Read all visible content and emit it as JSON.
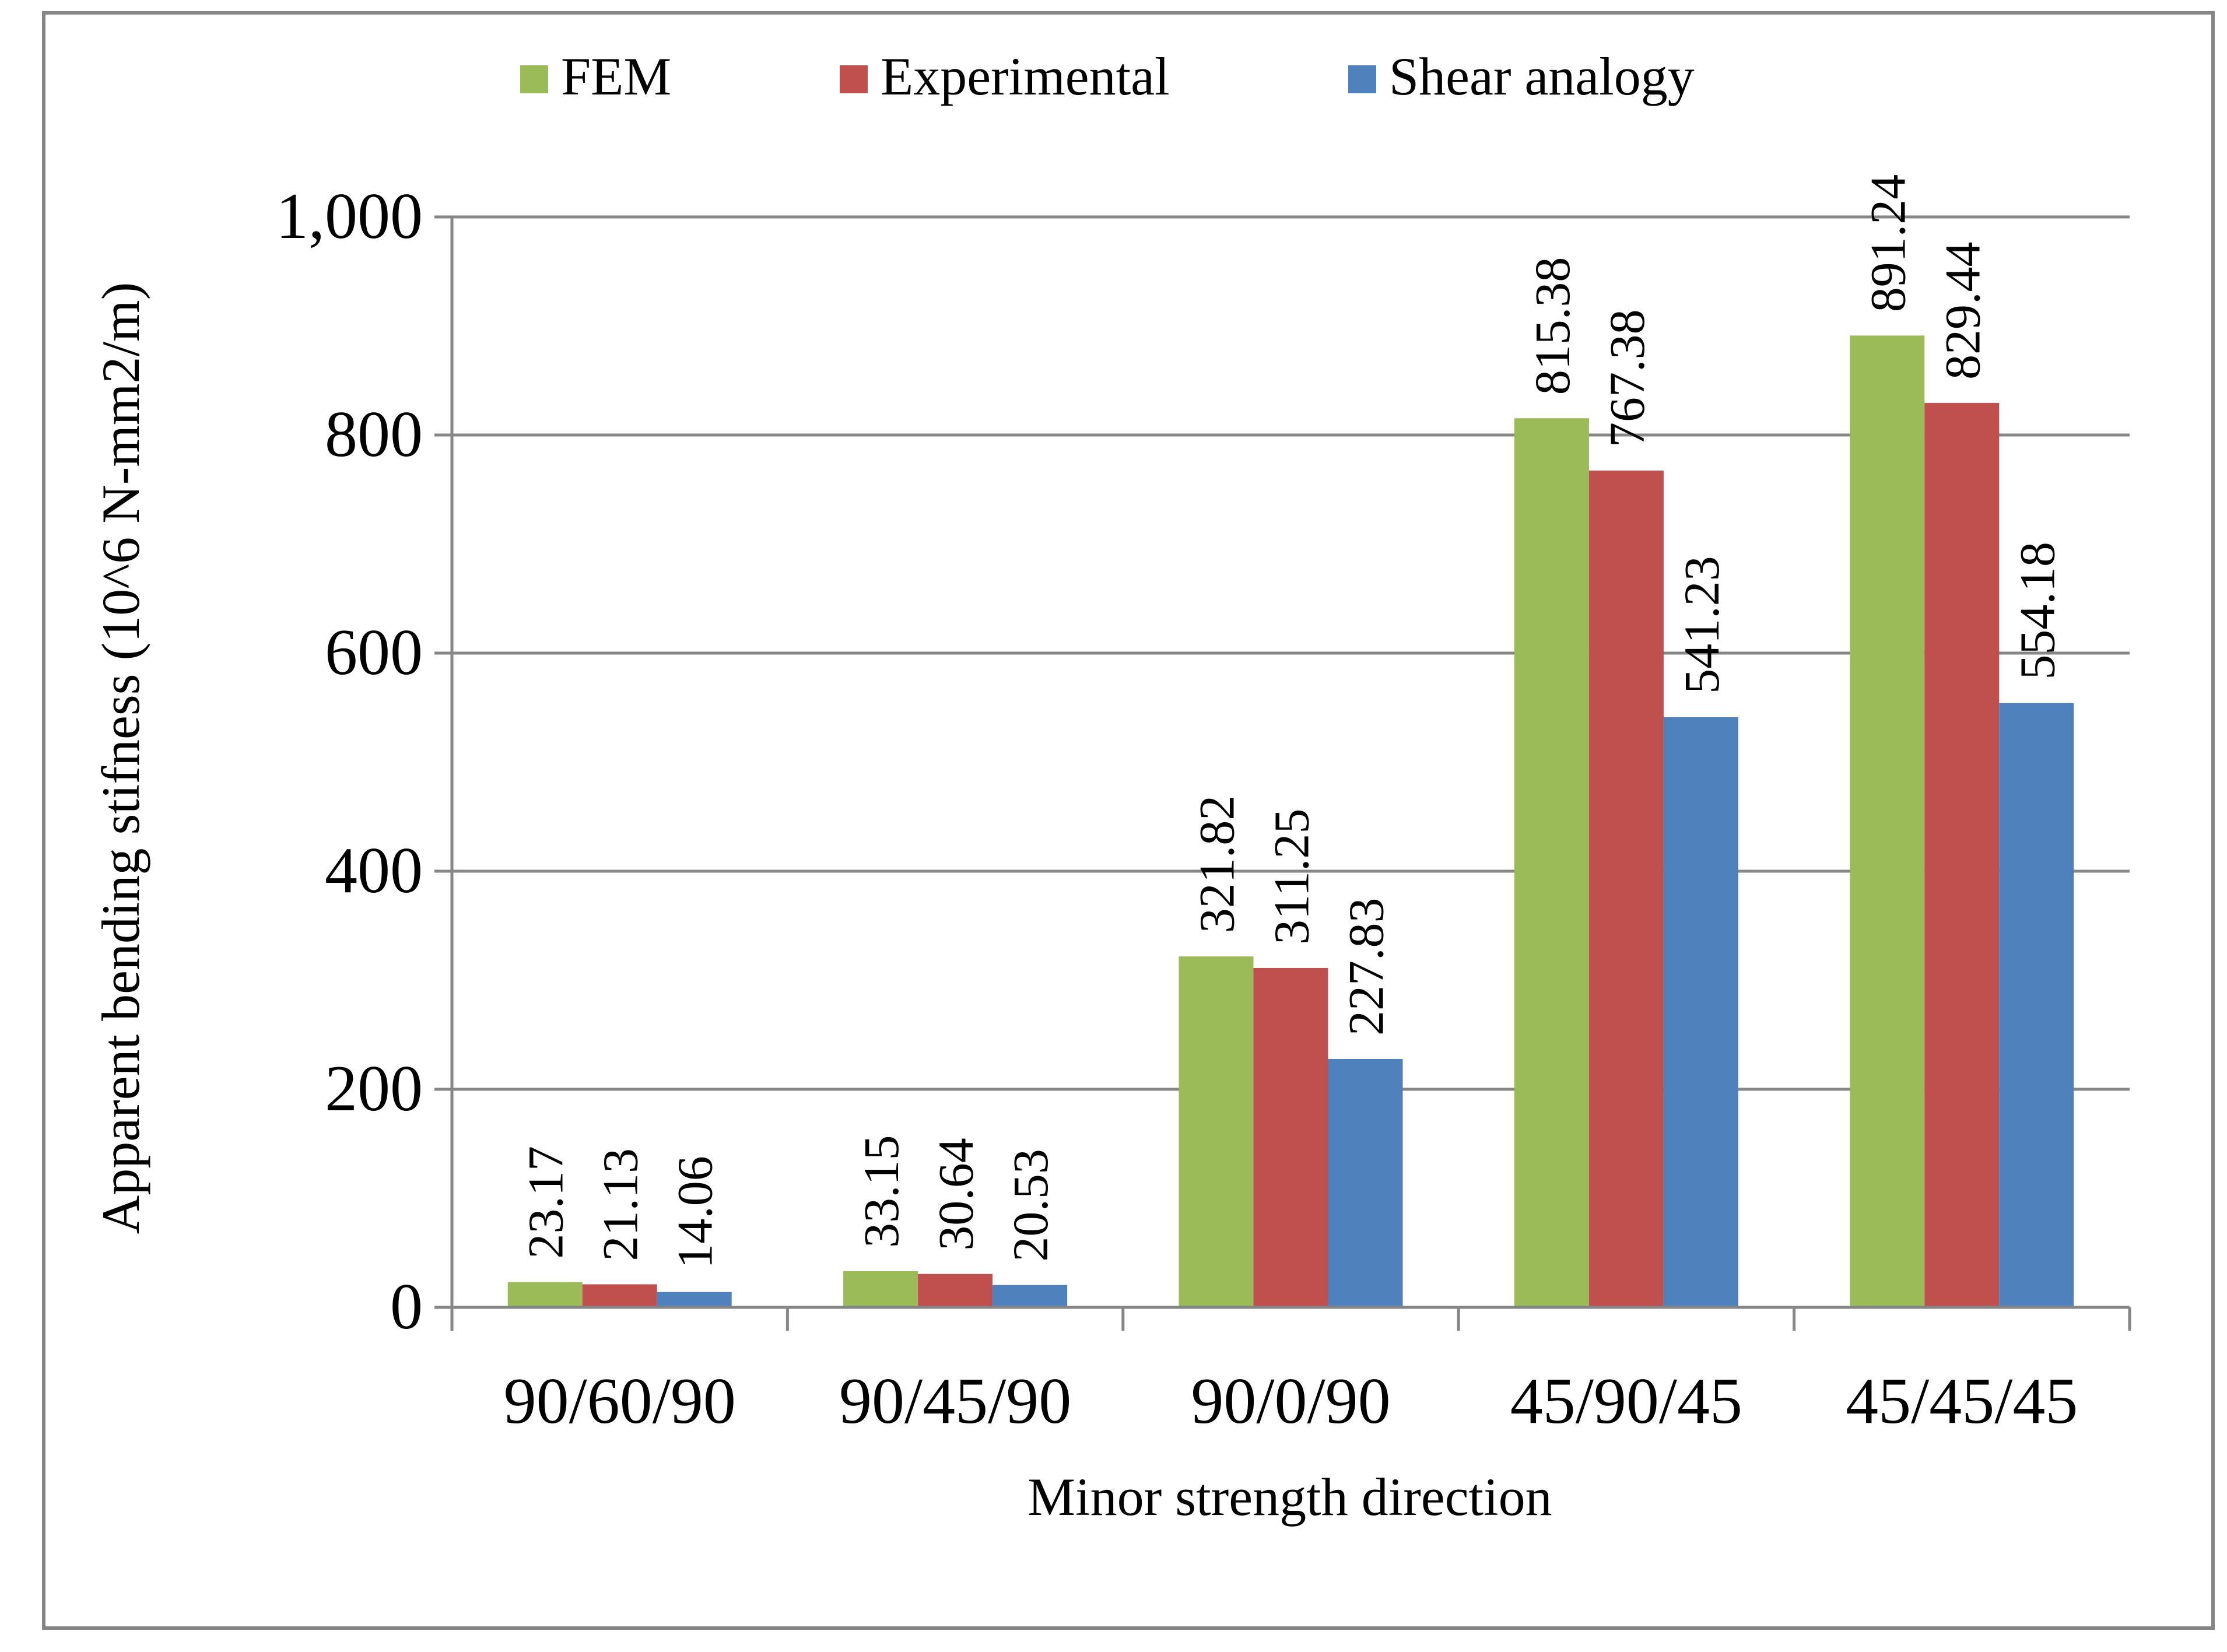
{
  "chart_data": {
    "type": "bar",
    "title": "",
    "xlabel": "Minor strength direction",
    "ylabel": "Apparent bending stifness (10^6 N-mm2/m)",
    "categories": [
      "90/60/90",
      "90/45/90",
      "90/0/90",
      "45/90/45",
      "45/45/45"
    ],
    "series": [
      {
        "name": "FEM",
        "color": "#9BBB59",
        "values": [
          23.17,
          33.15,
          321.82,
          815.38,
          891.24
        ],
        "labels": [
          "23.17",
          "33.15",
          "321.82",
          "815.38",
          "891.24"
        ]
      },
      {
        "name": "Experimental",
        "color": "#C0504D",
        "values": [
          21.13,
          30.64,
          311.25,
          767.38,
          829.44
        ],
        "labels": [
          "21.13",
          "30.64",
          "311.25",
          "767.38",
          "829.44"
        ]
      },
      {
        "name": "Shear analogy",
        "color": "#4F81BD",
        "values": [
          14.06,
          20.53,
          227.83,
          541.23,
          554.18
        ],
        "labels": [
          "14.06",
          "20.53",
          "227.83",
          "541.23",
          "554.18"
        ]
      }
    ],
    "ylim": [
      0,
      1000
    ],
    "yticks": [
      0,
      200,
      400,
      600,
      800,
      1000
    ],
    "ytick_labels": [
      "0",
      "200",
      "400",
      "600",
      "800",
      "1,000"
    ],
    "grid": true,
    "legend_position": "top-center"
  }
}
